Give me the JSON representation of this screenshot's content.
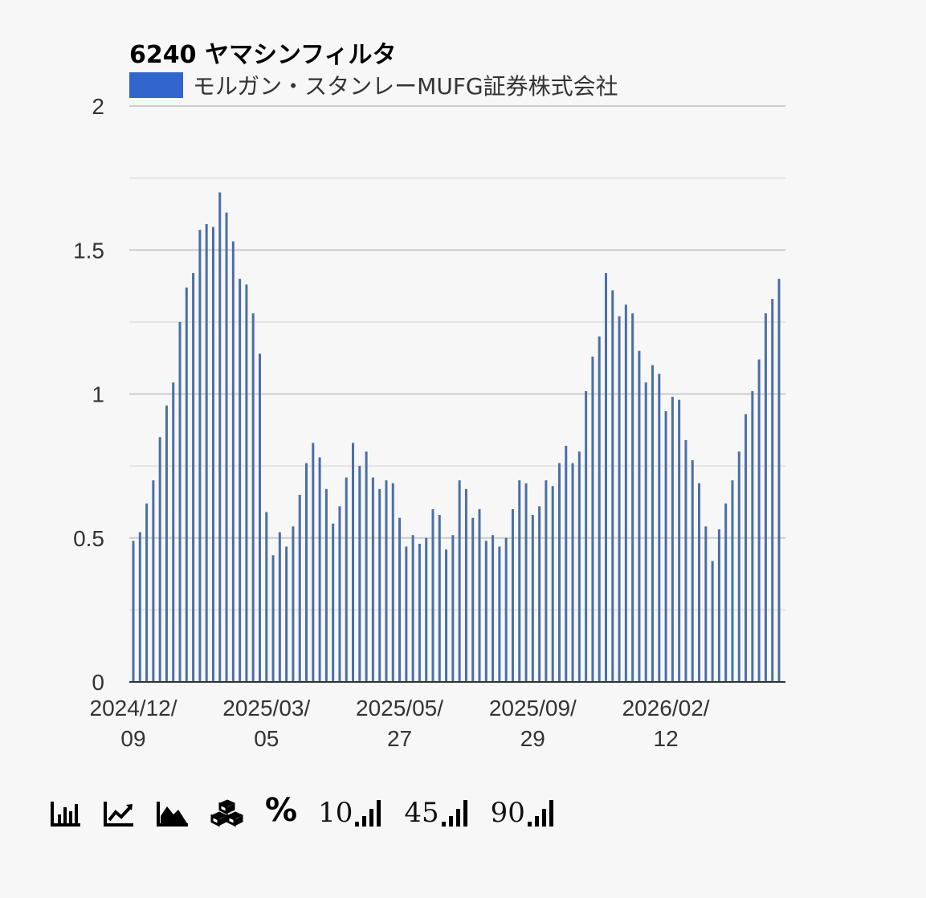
{
  "chart_data": {
    "type": "bar",
    "title": "6240 ヤマシンフィルタ",
    "legend_position": "top-left",
    "series": [
      {
        "name": "モルガン・スタンレーMUFG証券株式会社",
        "color": "#3366cc",
        "values": [
          0.49,
          0.52,
          0.62,
          0.7,
          0.85,
          0.96,
          1.04,
          1.25,
          1.37,
          1.42,
          1.57,
          1.59,
          1.58,
          1.7,
          1.63,
          1.53,
          1.4,
          1.38,
          1.28,
          1.14,
          0.59,
          0.44,
          0.52,
          0.47,
          0.54,
          0.65,
          0.76,
          0.83,
          0.78,
          0.67,
          0.55,
          0.61,
          0.71,
          0.83,
          0.75,
          0.8,
          0.71,
          0.67,
          0.7,
          0.69,
          0.57,
          0.47,
          0.51,
          0.48,
          0.5,
          0.6,
          0.58,
          0.46,
          0.51,
          0.7,
          0.67,
          0.57,
          0.6,
          0.49,
          0.51,
          0.47,
          0.5,
          0.6,
          0.7,
          0.69,
          0.58,
          0.61,
          0.7,
          0.68,
          0.76,
          0.82,
          0.76,
          0.8,
          1.01,
          1.13,
          1.2,
          1.42,
          1.36,
          1.27,
          1.31,
          1.28,
          1.15,
          1.04,
          1.1,
          1.07,
          0.94,
          0.99,
          0.98,
          0.84,
          0.77,
          0.69,
          0.54,
          0.42,
          0.53,
          0.62,
          0.7,
          0.8,
          0.93,
          1.01,
          1.12,
          1.28,
          1.33,
          1.4
        ]
      }
    ],
    "x_tick_labels": [
      {
        "index": 0,
        "line1": "2024/12/",
        "line2": "09"
      },
      {
        "index": 20,
        "line1": "2025/03/",
        "line2": "05"
      },
      {
        "index": 40,
        "line1": "2025/05/",
        "line2": "27"
      },
      {
        "index": 60,
        "line1": "2025/09/",
        "line2": "29"
      },
      {
        "index": 80,
        "line1": "2026/02/",
        "line2": "12"
      }
    ],
    "y_ticks": [
      "0",
      "0.5",
      "1",
      "1.5",
      "2"
    ],
    "ylim": [
      0,
      2
    ],
    "grid": true,
    "minor_grid": true,
    "bar_color": "#4a6fa5"
  },
  "toolbar": {
    "percent_symbol": "%",
    "n10": "10",
    "n45": "45",
    "n90": "90"
  }
}
